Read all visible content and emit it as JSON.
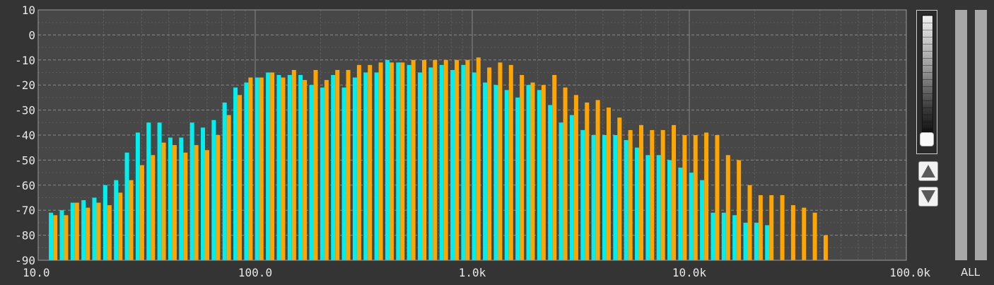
{
  "chart_data": {
    "type": "bar",
    "xscale": "log",
    "xlim": [
      10,
      100000
    ],
    "ylim": [
      -90,
      10
    ],
    "yticks": [
      10,
      0,
      -10,
      -20,
      -30,
      -40,
      -50,
      -60,
      -70,
      -80,
      -90
    ],
    "xticks": [
      {
        "value": 10,
        "label": "10.0"
      },
      {
        "value": 100,
        "label": "100.0"
      },
      {
        "value": 1000,
        "label": "1.0k"
      },
      {
        "value": 10000,
        "label": "10.0k"
      },
      {
        "value": 100000,
        "label": "100.0k"
      }
    ],
    "bands_start_hz": 11.2,
    "bands_per_decade": 20,
    "grid": true,
    "series": [
      {
        "color": "#00f0f0",
        "values": [
          -71,
          -70,
          -67,
          -66,
          -65,
          -60,
          -58,
          -47,
          -39,
          -35,
          -35,
          -41,
          -41,
          -35,
          -37,
          -34,
          -27,
          -21,
          -19,
          -17,
          -15,
          -16,
          -16,
          -16,
          -20,
          -21,
          -16,
          -21,
          -17,
          -15,
          -15,
          -10,
          -11,
          -12,
          -15,
          -13,
          -12,
          -14,
          -12,
          -15,
          -19,
          -20,
          -22,
          -25,
          -20,
          -22,
          -28,
          -35,
          -32,
          -38,
          -40,
          -40,
          -40,
          -42,
          -45,
          -48,
          -48,
          -50,
          -53,
          -55,
          -58,
          -71,
          -71,
          -72,
          -75,
          -75,
          -76,
          -90
        ]
      },
      {
        "color": "#ffa500",
        "values": [
          -72,
          -72,
          -67,
          -69,
          -67,
          -68,
          -63,
          -58,
          -52,
          -48,
          -43,
          -44,
          -47,
          -44,
          -46,
          -40,
          -32,
          -24,
          -17,
          -17,
          -15,
          -17,
          -14,
          -18,
          -14,
          -18,
          -14,
          -14,
          -12,
          -12,
          -11,
          -11,
          -11,
          -10,
          -10,
          -10,
          -10,
          -10,
          -10,
          -9,
          -13,
          -11,
          -12,
          -16,
          -19,
          -20,
          -16,
          -21,
          -24,
          -27,
          -26,
          -29,
          -33,
          -38,
          -36,
          -38,
          -38,
          -36,
          -40,
          -40,
          -39,
          -40,
          -48,
          -50,
          -60,
          -64,
          -64,
          -64,
          -68,
          -69,
          -71,
          -80
        ]
      }
    ]
  },
  "sidebar": {
    "all_label": "ALL"
  },
  "colors": {
    "background": "#343434",
    "plot_background": "#474747",
    "grid_major": "#8a8a8a",
    "grid_minor": "#5c5c5c",
    "cyan": "#00f0f0",
    "orange": "#ffa500"
  }
}
